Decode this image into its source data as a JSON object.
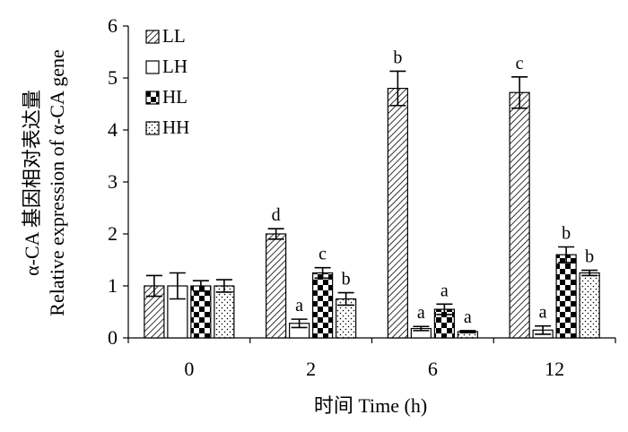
{
  "chart_data": {
    "type": "bar",
    "categories": [
      "0",
      "2",
      "6",
      "12"
    ],
    "series": [
      {
        "name": "LL",
        "pattern": "diagonal-hatch",
        "values": [
          1.0,
          2.0,
          4.8,
          4.72
        ],
        "errors": [
          0.2,
          0.1,
          0.33,
          0.3
        ],
        "labels": [
          "",
          "d",
          "b",
          "c"
        ]
      },
      {
        "name": "LH",
        "pattern": "white",
        "values": [
          1.0,
          0.28,
          0.18,
          0.15
        ],
        "errors": [
          0.25,
          0.08,
          0.04,
          0.08
        ],
        "labels": [
          "",
          "a",
          "a",
          "a"
        ]
      },
      {
        "name": "HL",
        "pattern": "checkerboard",
        "values": [
          1.0,
          1.25,
          0.55,
          1.6
        ],
        "errors": [
          0.1,
          0.1,
          0.1,
          0.15
        ],
        "labels": [
          "",
          "c",
          "a",
          "b"
        ]
      },
      {
        "name": "HH",
        "pattern": "dotted",
        "values": [
          1.0,
          0.75,
          0.12,
          1.25
        ],
        "errors": [
          0.12,
          0.12,
          0.02,
          0.05
        ],
        "labels": [
          "",
          "b",
          "a",
          "b"
        ]
      }
    ],
    "xlabel": "时间 Time (h)",
    "ylabel_line1": "α-CA 基因相对表达量",
    "ylabel_line2": "Relative expression of α-CA gene",
    "ylim": [
      0,
      6
    ],
    "yticks": [
      "0",
      "1",
      "2",
      "3",
      "4",
      "5",
      "6"
    ],
    "grid": false,
    "legend_position": "top-left",
    "colors": {
      "bar_stroke": "#000000",
      "bar_fill": "#ffffff",
      "axis": "#000000"
    }
  }
}
